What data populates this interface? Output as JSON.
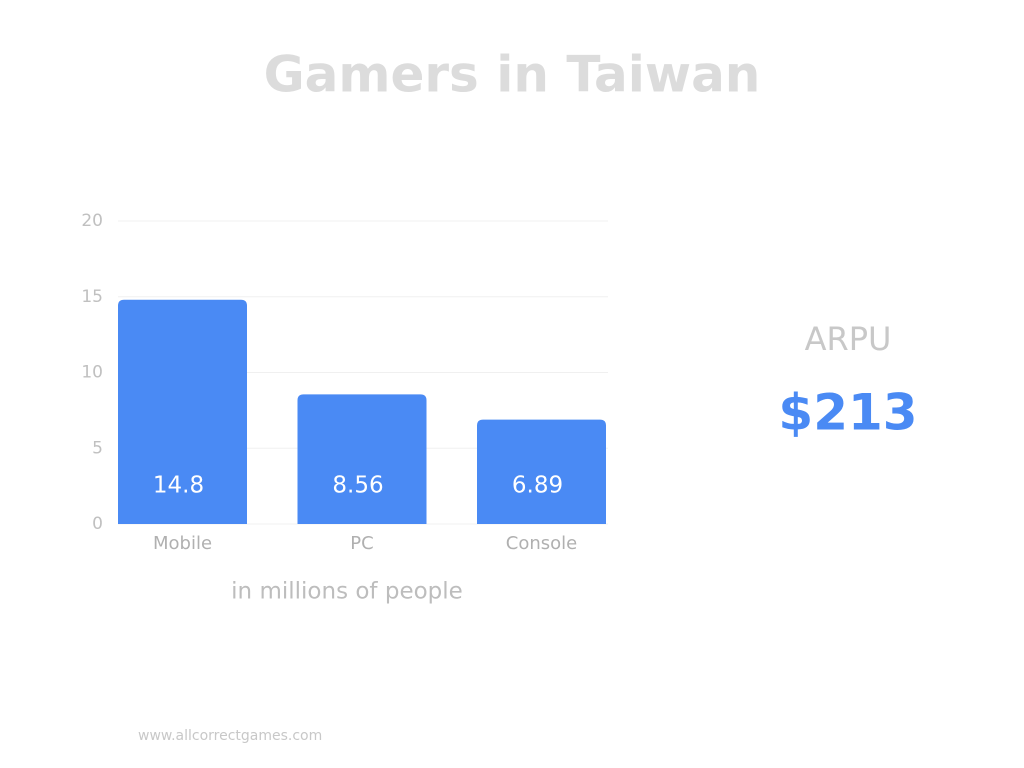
{
  "chart_data": {
    "type": "bar",
    "title": "Gamers in Taiwan",
    "categories": [
      "Mobile",
      "PC",
      "Console"
    ],
    "values": [
      14.8,
      8.56,
      6.89
    ],
    "color": "#4a8af4",
    "x_label": "in millions of people",
    "ylim": [
      0,
      20
    ],
    "yticks": [
      0,
      5,
      10,
      15,
      20
    ],
    "grid": true
  },
  "kpi": {
    "label": "ARPU",
    "value": "$213"
  },
  "footer": "www.allcorrectgames.com"
}
